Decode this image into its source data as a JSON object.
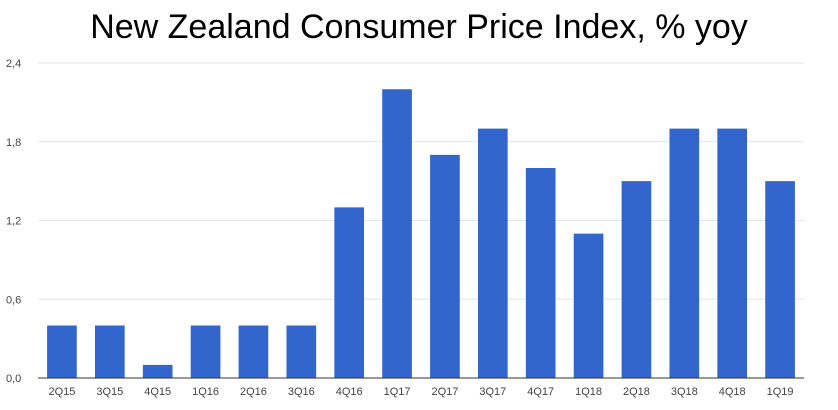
{
  "chart_data": {
    "type": "bar",
    "title": "New Zealand Consumer Price Index, % yoy",
    "xlabel": "",
    "ylabel": "",
    "categories": [
      "2Q15",
      "3Q15",
      "4Q15",
      "1Q16",
      "2Q16",
      "3Q16",
      "4Q16",
      "1Q17",
      "2Q17",
      "3Q17",
      "4Q17",
      "1Q18",
      "2Q18",
      "3Q18",
      "4Q18",
      "1Q19"
    ],
    "values": [
      0.4,
      0.4,
      0.1,
      0.4,
      0.4,
      0.4,
      1.3,
      2.2,
      1.7,
      1.9,
      1.6,
      1.1,
      1.5,
      1.9,
      1.9,
      1.5
    ],
    "ylim": [
      0,
      2.4
    ],
    "yticks": [
      0,
      0.6,
      1.2,
      1.8,
      2.4
    ],
    "ytick_labels": [
      "0,0",
      "0,6",
      "1,2",
      "1,8",
      "2,4"
    ],
    "grid": true,
    "bar_color": "#3366cc",
    "grid_color": "#e6e6e6",
    "axis_color": "#333333"
  }
}
